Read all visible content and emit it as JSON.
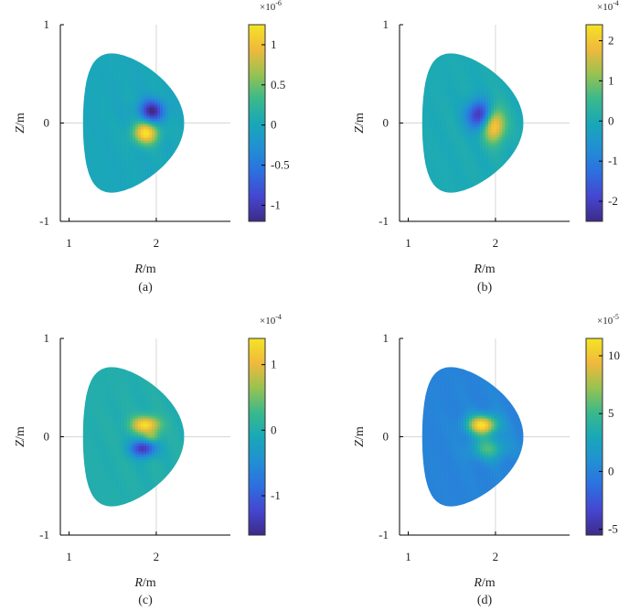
{
  "chart_data": [
    {
      "type": "heatmap",
      "panel": "(a)",
      "xlabel_var": "R",
      "xlabel_unit": "/m",
      "ylabel_var": "Z",
      "ylabel_unit": "/m",
      "xlim": [
        0.9,
        2.85
      ],
      "ylim": [
        -1.0,
        1.0
      ],
      "xticks": [
        1,
        2
      ],
      "xtick_labels": [
        "1",
        "2"
      ],
      "yticks": [
        -1,
        0,
        1
      ],
      "ytick_labels": [
        "-1",
        "0",
        "1"
      ],
      "colorbar": {
        "range": [
          -1.2,
          1.25
        ],
        "ticks": [
          -1,
          -0.5,
          0,
          0.5,
          1
        ],
        "tick_labels": [
          "-1",
          "-0.5",
          "0",
          "0.5",
          "1"
        ],
        "multiplier": "×10",
        "exponent": "-6"
      },
      "blobs": [
        {
          "r": 1.95,
          "z": 0.12,
          "amp": -1.0,
          "sr": 0.1,
          "sz": 0.08
        },
        {
          "r": 1.88,
          "z": -0.1,
          "amp": 1.0,
          "sr": 0.1,
          "sz": 0.08
        }
      ]
    },
    {
      "type": "heatmap",
      "panel": "(b)",
      "xlabel_var": "R",
      "xlabel_unit": "/m",
      "ylabel_var": "Z",
      "ylabel_unit": "/m",
      "xlim": [
        0.9,
        2.85
      ],
      "ylim": [
        -1.0,
        1.0
      ],
      "xticks": [
        1,
        2
      ],
      "xtick_labels": [
        "1",
        "2"
      ],
      "yticks": [
        -1,
        0,
        1
      ],
      "ytick_labels": [
        "-1",
        "0",
        "1"
      ],
      "colorbar": {
        "range": [
          -2.5,
          2.4
        ],
        "ticks": [
          -2,
          -1,
          0,
          1,
          2
        ],
        "tick_labels": [
          "-2",
          "-1",
          "0",
          "1",
          "2"
        ],
        "multiplier": "×10",
        "exponent": "-4"
      },
      "blobs": [
        {
          "r": 1.82,
          "z": 0.08,
          "amp": -1.0,
          "sr": 0.1,
          "sz": 0.1
        },
        {
          "r": 1.98,
          "z": -0.02,
          "amp": 1.0,
          "sr": 0.09,
          "sz": 0.12
        }
      ]
    },
    {
      "type": "heatmap",
      "panel": "(c)",
      "xlabel_var": "R",
      "xlabel_unit": "/m",
      "ylabel_var": "Z",
      "ylabel_unit": "/m",
      "xlim": [
        0.9,
        2.85
      ],
      "ylim": [
        -1.0,
        1.0
      ],
      "xticks": [
        1,
        2
      ],
      "xtick_labels": [
        "1",
        "2"
      ],
      "yticks": [
        -1,
        0,
        1
      ],
      "ytick_labels": [
        "-1",
        "0",
        "1"
      ],
      "colorbar": {
        "range": [
          -1.6,
          1.4
        ],
        "ticks": [
          -1,
          0,
          1
        ],
        "tick_labels": [
          "-1",
          "0",
          "1"
        ],
        "multiplier": "×10",
        "exponent": "-4"
      },
      "blobs": [
        {
          "r": 1.88,
          "z": 0.12,
          "amp": 1.0,
          "sr": 0.11,
          "sz": 0.06
        },
        {
          "r": 1.85,
          "z": -0.12,
          "amp": -0.9,
          "sr": 0.1,
          "sz": 0.06
        },
        {
          "r": 1.95,
          "z": 0.0,
          "amp": 0.4,
          "sr": 0.06,
          "sz": 0.04
        }
      ]
    },
    {
      "type": "heatmap",
      "panel": "(d)",
      "xlabel_var": "R",
      "xlabel_unit": "/m",
      "ylabel_var": "Z",
      "ylabel_unit": "/m",
      "xlim": [
        0.9,
        2.85
      ],
      "ylim": [
        -1.0,
        1.0
      ],
      "xticks": [
        1,
        2
      ],
      "xtick_labels": [
        "1",
        "2"
      ],
      "yticks": [
        -1,
        0,
        1
      ],
      "ytick_labels": [
        "-1",
        "0",
        "1"
      ],
      "colorbar": {
        "range": [
          -5.5,
          11.5
        ],
        "ticks": [
          -5,
          0,
          5,
          10
        ],
        "tick_labels": [
          "-5",
          "0",
          "5",
          "10"
        ],
        "multiplier": "×10",
        "exponent": "-5"
      },
      "blobs": [
        {
          "r": 1.85,
          "z": 0.12,
          "amp": 1.0,
          "sr": 0.12,
          "sz": 0.07
        },
        {
          "r": 1.92,
          "z": -0.12,
          "amp": 0.45,
          "sr": 0.14,
          "sz": 0.08
        }
      ]
    }
  ]
}
